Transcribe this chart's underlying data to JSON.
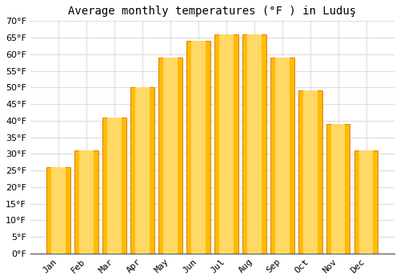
{
  "title": "Average monthly temperatures (°F ) in Luduş",
  "months": [
    "Jan",
    "Feb",
    "Mar",
    "Apr",
    "May",
    "Jun",
    "Jul",
    "Aug",
    "Sep",
    "Oct",
    "Nov",
    "Dec"
  ],
  "values": [
    26,
    31,
    41,
    50,
    59,
    64,
    66,
    66,
    59,
    49,
    39,
    31
  ],
  "bar_color_face": "#FFBB00",
  "bar_color_edge": "#E08000",
  "bar_color_gradient_light": "#FFD966",
  "ylim": [
    0,
    70
  ],
  "ytick_step": 5,
  "background_color": "#FFFFFF",
  "grid_color": "#DDDDDD",
  "title_fontsize": 10,
  "tick_fontsize": 8,
  "font_family": "monospace",
  "bar_width": 0.85
}
